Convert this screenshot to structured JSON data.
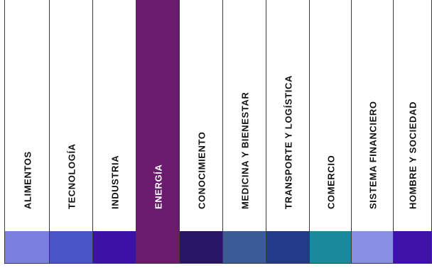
{
  "categories": [
    {
      "label": "ALIMENTOS",
      "color": "#7b7fe0"
    },
    {
      "label": "TECNOLOGÍA",
      "color": "#4a56c8"
    },
    {
      "label": "INDUSTRIA",
      "color": "#3b11a6"
    },
    {
      "label": "ENERGÍA",
      "color": "#6a1b6e",
      "active": true
    },
    {
      "label": "CONOCIMIENTO",
      "color": "#2a1468"
    },
    {
      "label": "MEDICINA Y BIENESTAR",
      "color": "#3a5a98"
    },
    {
      "label": "TRANSPORTE Y LOGÍSTICA",
      "color": "#233a8a"
    },
    {
      "label": "COMERCIO",
      "color": "#1a8a9a"
    },
    {
      "label": "SISTEMA FINANCIERO",
      "color": "#8a8fe6"
    },
    {
      "label": "HOMBRE Y SOCIEDAD",
      "color": "#3f11a8"
    }
  ]
}
